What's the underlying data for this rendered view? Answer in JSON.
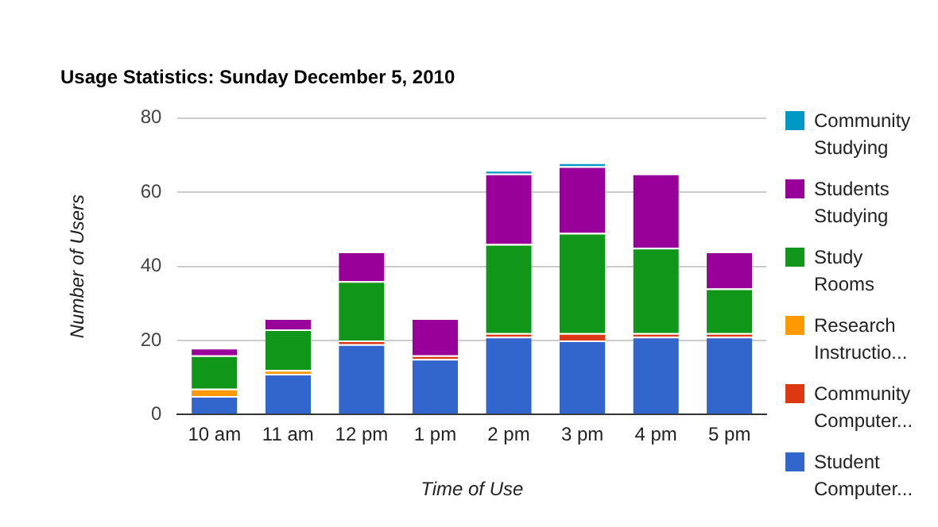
{
  "chart_data": {
    "type": "bar",
    "title": "Usage Statistics: Sunday December 5, 2010",
    "xlabel": "Time of Use",
    "ylabel": "Number of Users",
    "categories": [
      "10 am",
      "11 am",
      "12 pm",
      "1 pm",
      "2 pm",
      "3 pm",
      "4 pm",
      "5 pm"
    ],
    "stacked": true,
    "series": [
      {
        "name": "Student Computer...",
        "color": "#3366cc",
        "values": [
          5,
          11,
          19,
          15,
          21,
          20,
          21,
          21
        ]
      },
      {
        "name": "Community Computer...",
        "color": "#dc3912",
        "values": [
          0,
          0,
          1,
          1,
          1,
          2,
          1,
          1
        ]
      },
      {
        "name": "Research Instructio...",
        "color": "#ff9900",
        "values": [
          2,
          1,
          0,
          0,
          0,
          0,
          0,
          0
        ]
      },
      {
        "name": "Study Rooms",
        "color": "#109618",
        "values": [
          9,
          11,
          16,
          0,
          24,
          27,
          23,
          12
        ]
      },
      {
        "name": "Students Studying",
        "color": "#990099",
        "values": [
          2,
          3,
          8,
          10,
          19,
          18,
          20,
          10
        ]
      },
      {
        "name": "Community Studying",
        "color": "#0099c6",
        "values": [
          0,
          0,
          0,
          0,
          1,
          1,
          0,
          0
        ]
      }
    ],
    "ylim": [
      0,
      80
    ],
    "yticks": [
      0,
      20,
      40,
      60,
      80
    ],
    "grid": "y",
    "legend": "right"
  }
}
